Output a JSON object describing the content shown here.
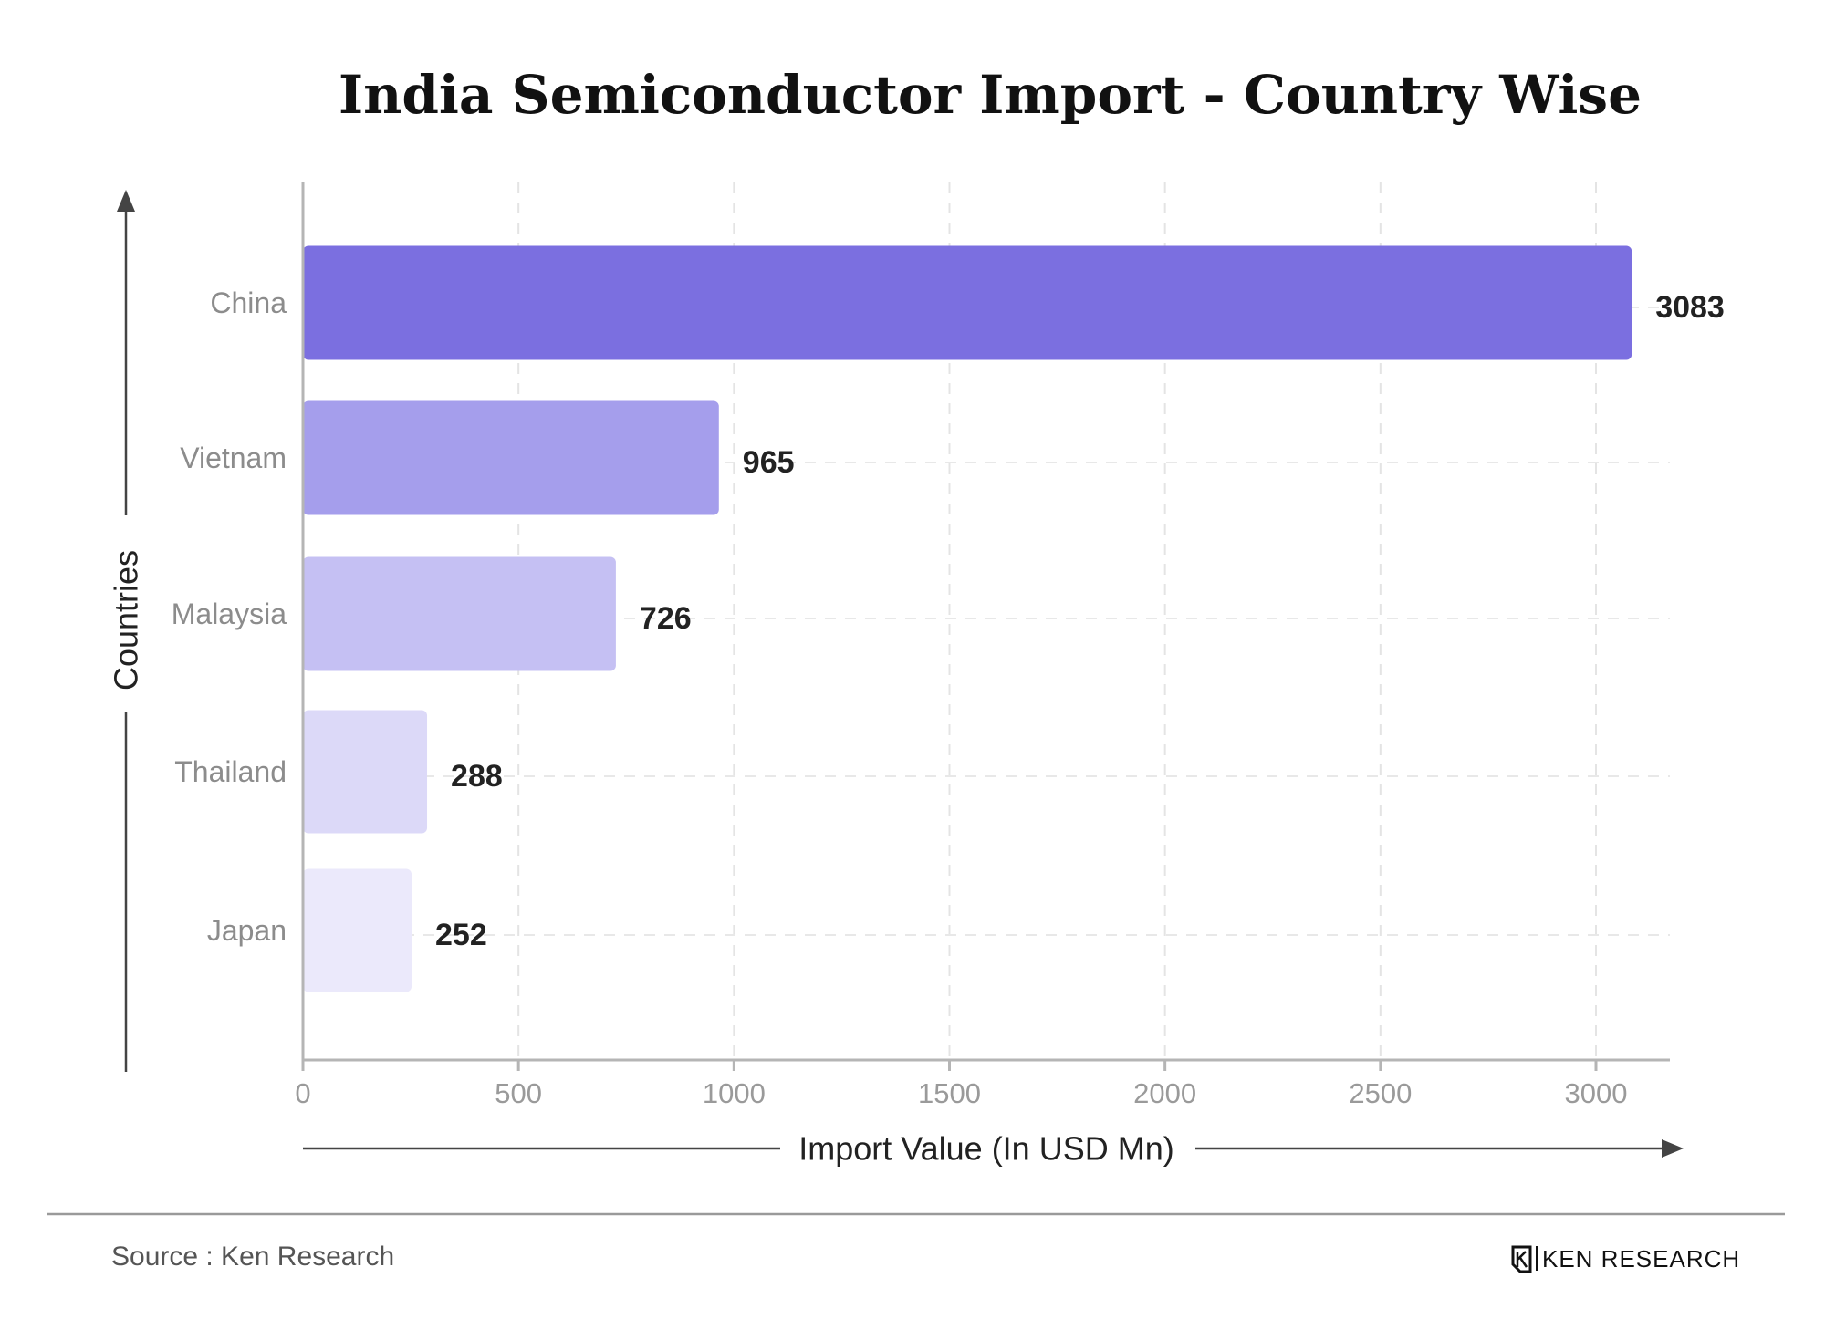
{
  "chart_data": {
    "type": "bar",
    "orientation": "horizontal",
    "title": "India Semiconductor Import - Country Wise",
    "xlabel": "Import Value (In USD Mn)",
    "ylabel": "Countries",
    "categories": [
      "China",
      "Vietnam",
      "Malaysia",
      "Thailand",
      "Japan"
    ],
    "values": [
      3083,
      965,
      726,
      288,
      252
    ],
    "xlim": [
      0,
      3200
    ],
    "xticks": [
      "0",
      "500",
      "1000",
      "1500",
      "2000",
      "2500",
      "3000"
    ],
    "bar_colors": [
      "#7b6fe0",
      "#a59eec",
      "#c5c0f3",
      "#dcd9f8",
      "#ebe9fb"
    ],
    "grid": true,
    "legend": "none"
  },
  "footer": {
    "source": "Source : Ken Research",
    "brand": "KEN RESEARCH"
  }
}
